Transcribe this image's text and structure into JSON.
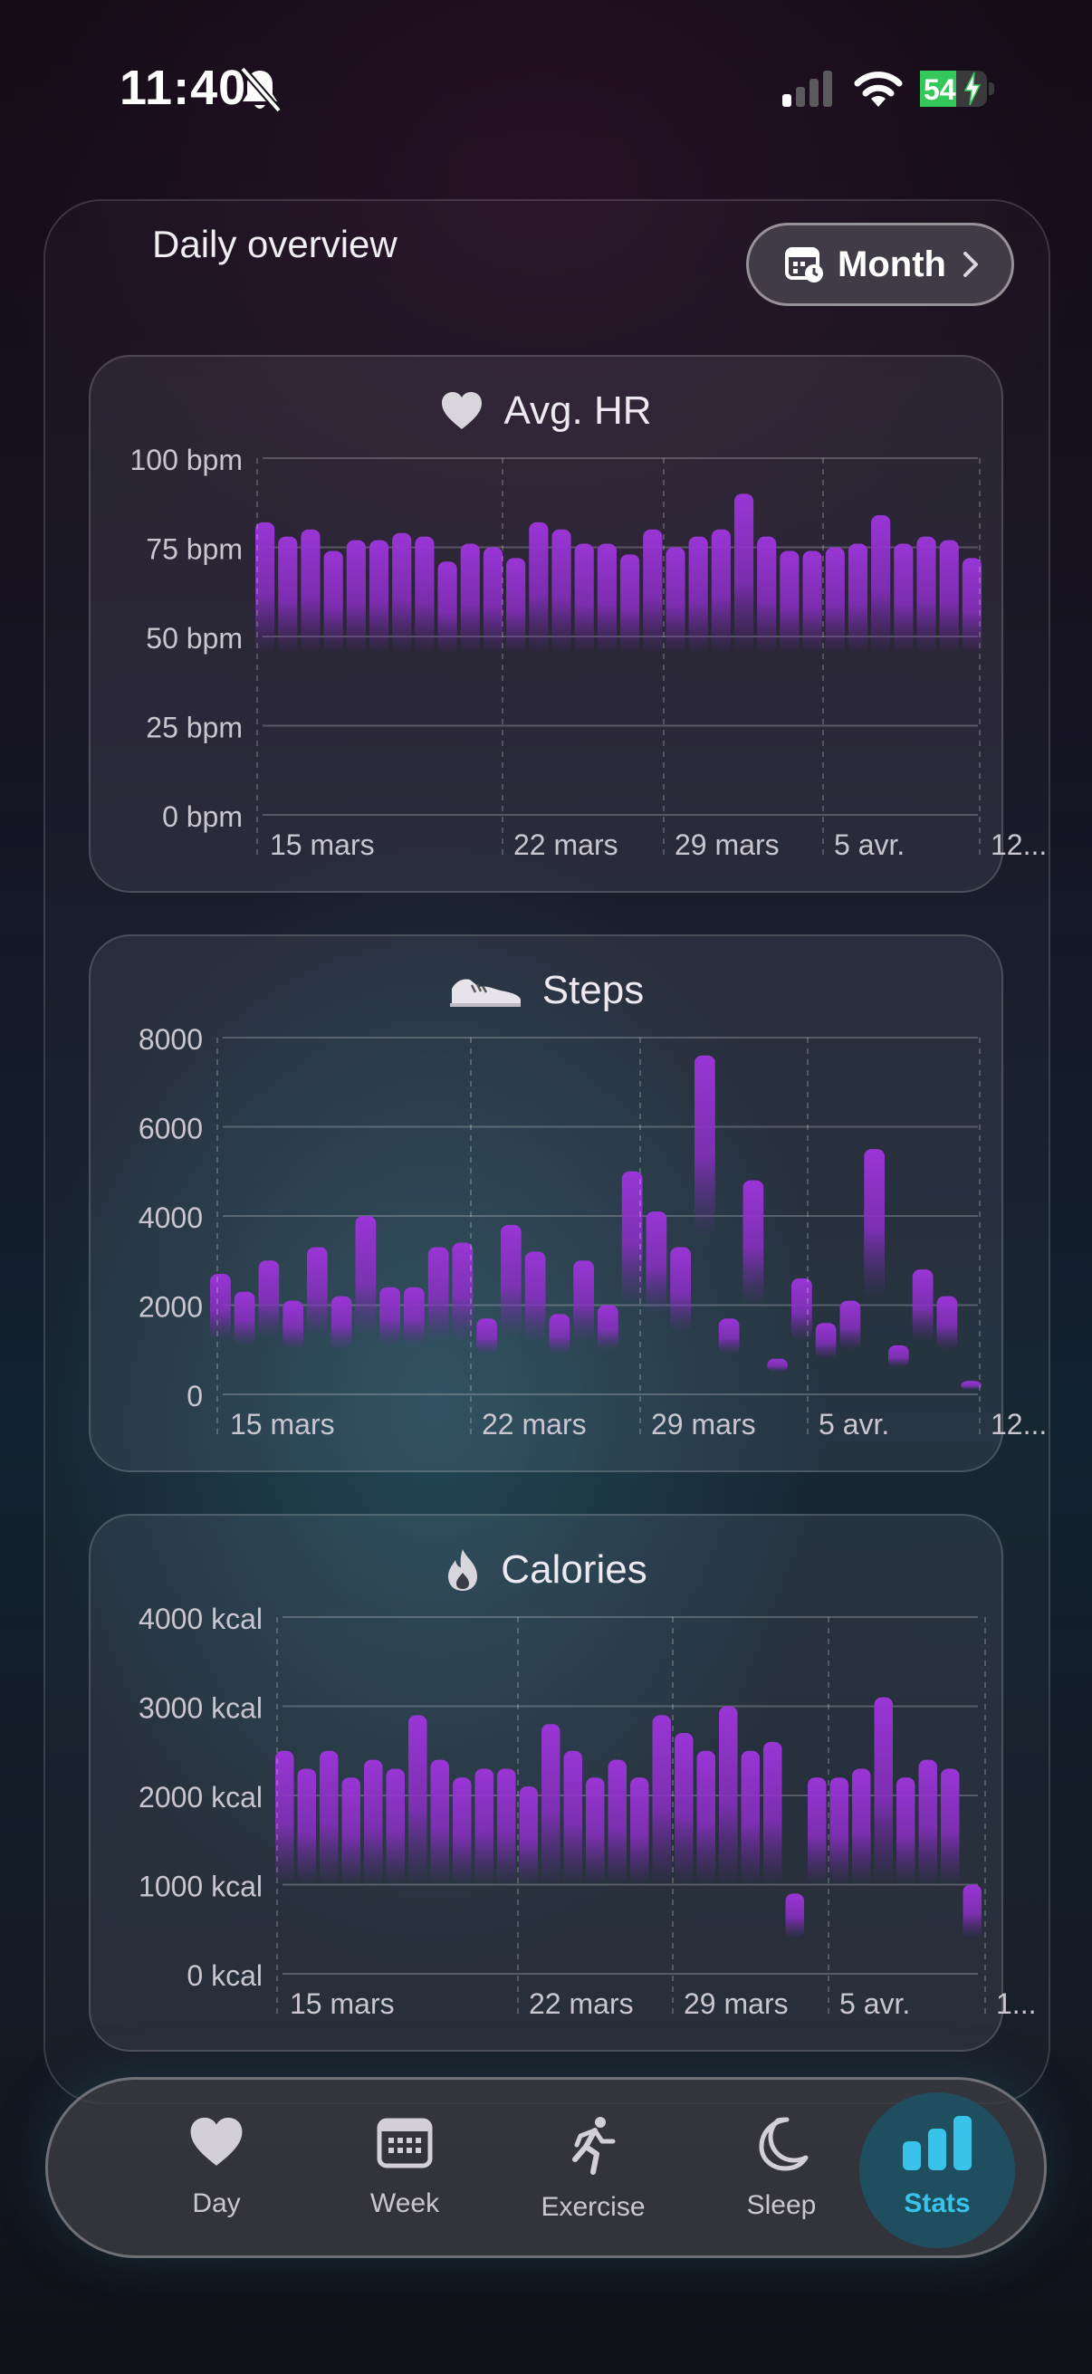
{
  "status": {
    "time": "11:40",
    "battery": "54",
    "battery_level": 0.54
  },
  "header": {
    "title": "Daily overview",
    "range_label": "Month"
  },
  "cards": [
    {
      "title": "Avg. HR",
      "icon": "heart-icon",
      "y_ticks": [
        "100 bpm",
        "75 bpm",
        "50 bpm",
        "25 bpm",
        "0 bpm"
      ],
      "x_ticks": [
        "15 mars",
        "22 mars",
        "29 mars",
        "5 avr.",
        "12..."
      ]
    },
    {
      "title": "Steps",
      "icon": "shoe-icon",
      "y_ticks": [
        "8000",
        "6000",
        "4000",
        "2000",
        "0"
      ],
      "x_ticks": [
        "15 mars",
        "22 mars",
        "29 mars",
        "5 avr.",
        "12..."
      ]
    },
    {
      "title": "Calories",
      "icon": "flame-icon",
      "y_ticks": [
        "4000 kcal",
        "3000 kcal",
        "2000 kcal",
        "1000 kcal",
        "0 kcal"
      ],
      "x_ticks": [
        "15 mars",
        "22 mars",
        "29 mars",
        "5 avr.",
        "1..."
      ]
    }
  ],
  "tabs": [
    {
      "label": "Day",
      "icon": "heart-icon"
    },
    {
      "label": "Week",
      "icon": "calendar-icon"
    },
    {
      "label": "Exercise",
      "icon": "running-icon"
    },
    {
      "label": "Sleep",
      "icon": "moon-icon"
    },
    {
      "label": "Stats",
      "icon": "bar-chart-icon",
      "active": true
    }
  ],
  "colors": {
    "bar_top": "#9a35d6",
    "accent": "#39c3ea",
    "battery": "#34c759"
  },
  "chart_data": [
    {
      "type": "bar",
      "title": "Avg. HR",
      "ylabel": "",
      "ylim": [
        0,
        100
      ],
      "y_ticks": [
        100,
        75,
        50,
        25,
        0
      ],
      "x_ticks": [
        "15 mars",
        "22 mars",
        "29 mars",
        "5 avr.",
        "12..."
      ],
      "values": [
        82,
        78,
        80,
        74,
        77,
        77,
        79,
        78,
        71,
        76,
        75,
        72,
        82,
        80,
        76,
        76,
        73,
        80,
        75,
        78,
        80,
        90,
        78,
        74,
        74,
        75,
        76,
        84,
        76,
        78,
        77,
        72
      ],
      "lows": [
        45,
        45,
        45,
        45,
        45,
        45,
        45,
        45,
        45,
        45,
        45,
        45,
        45,
        45,
        45,
        45,
        45,
        45,
        45,
        45,
        45,
        45,
        45,
        45,
        45,
        45,
        45,
        45,
        45,
        45,
        45,
        45
      ]
    },
    {
      "type": "bar",
      "title": "Steps",
      "ylabel": "",
      "ylim": [
        0,
        8000
      ],
      "y_ticks": [
        8000,
        6000,
        4000,
        2000,
        0
      ],
      "x_ticks": [
        "15 mars",
        "22 mars",
        "29 mars",
        "5 avr.",
        "12..."
      ],
      "values": [
        2700,
        2300,
        3000,
        2100,
        3300,
        2200,
        4000,
        2400,
        2400,
        3300,
        3400,
        1700,
        3800,
        3200,
        1800,
        3000,
        2000,
        5000,
        4100,
        3300,
        7600,
        1700,
        4800,
        800,
        2600,
        1600,
        2100,
        5500,
        1100,
        2800,
        2200,
        300
      ],
      "lows": [
        1200,
        1100,
        1300,
        1000,
        1300,
        1000,
        1300,
        1100,
        1100,
        1200,
        1200,
        900,
        1300,
        1200,
        900,
        1200,
        1000,
        2000,
        1800,
        1400,
        3500,
        900,
        2000,
        500,
        1200,
        800,
        1000,
        2200,
        600,
        1200,
        1000,
        100
      ]
    },
    {
      "type": "bar",
      "title": "Calories",
      "ylabel": "",
      "ylim": [
        0,
        4000
      ],
      "y_ticks": [
        4000,
        3000,
        2000,
        1000,
        0
      ],
      "x_ticks": [
        "15 mars",
        "22 mars",
        "29 mars",
        "5 avr.",
        "1..."
      ],
      "values": [
        2500,
        2300,
        2500,
        2200,
        2400,
        2300,
        2900,
        2400,
        2200,
        2300,
        2300,
        2100,
        2800,
        2500,
        2200,
        2400,
        2200,
        2900,
        2700,
        2500,
        3000,
        2500,
        2600,
        900,
        2200,
        2200,
        2300,
        3100,
        2200,
        2400,
        2300,
        1000
      ],
      "lows": [
        1000,
        1000,
        1000,
        1000,
        1000,
        1000,
        1000,
        1000,
        1000,
        1000,
        1000,
        1000,
        1000,
        1000,
        1000,
        1000,
        1000,
        1000,
        1000,
        1000,
        1000,
        1000,
        1000,
        400,
        1000,
        1000,
        1000,
        1000,
        1000,
        1000,
        1000,
        400
      ]
    }
  ]
}
